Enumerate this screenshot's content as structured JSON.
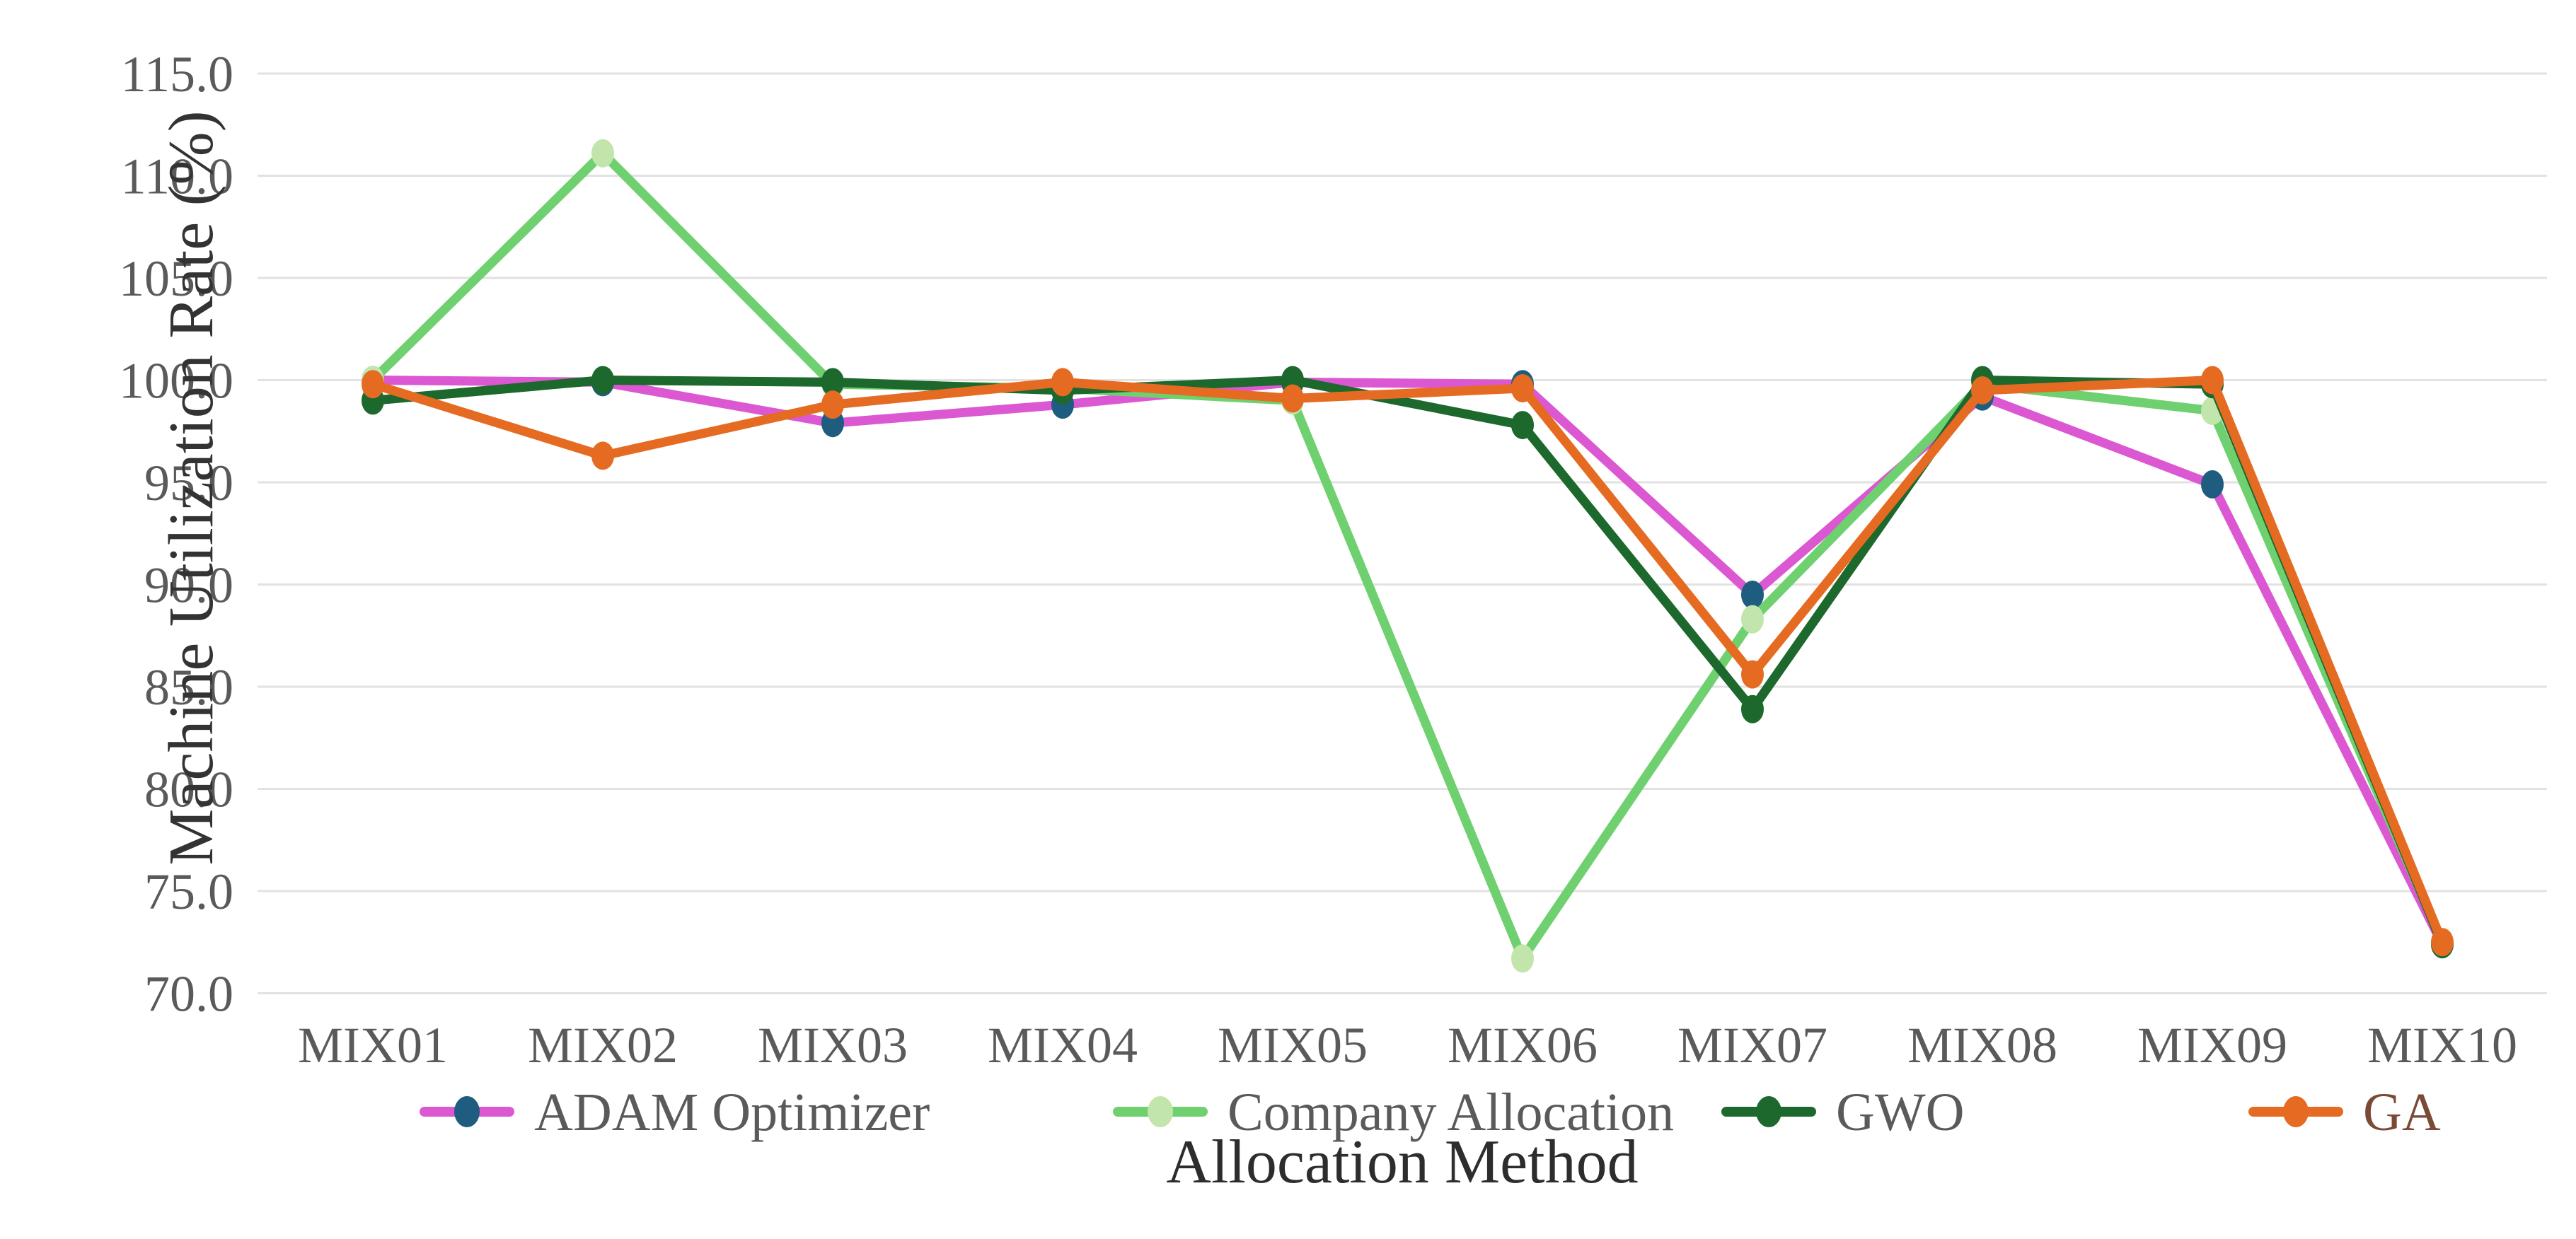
{
  "chart_data": {
    "type": "line",
    "title": "",
    "xlabel": "Allocation Method",
    "ylabel": "Machine Utilization Rate (%)",
    "categories": [
      "MIX01",
      "MIX02",
      "MIX03",
      "MIX04",
      "MIX05",
      "MIX06",
      "MIX07",
      "MIX08",
      "MIX09",
      "MIX10"
    ],
    "y_ticks": [
      "115.0",
      "110.0",
      "105.0",
      "100.0",
      "95.0",
      "90.0",
      "85.0",
      "80.0",
      "75.0",
      "70.0"
    ],
    "ylim": [
      70.0,
      115.0
    ],
    "grid": "horizontal",
    "legend_position": "bottom",
    "series": [
      {
        "name": "ADAM Optimizer",
        "line_color": "#db58d2",
        "marker_color": "#1e5d7f",
        "label_color": "#5a5a5a",
        "values": [
          100.0,
          99.9,
          97.9,
          98.8,
          99.9,
          99.8,
          89.5,
          99.2,
          94.9,
          72.4
        ]
      },
      {
        "name": "Company Allocation",
        "line_color": "#6fd06f",
        "marker_color": "#c2e5ab",
        "label_color": "#5a5a5a",
        "values": [
          100.0,
          111.1,
          99.8,
          99.6,
          99.0,
          71.7,
          88.3,
          99.8,
          98.5,
          72.5
        ]
      },
      {
        "name": "GWO",
        "line_color": "#1c682d",
        "marker_color": "#1c682d",
        "label_color": "#5a5a5a",
        "values": [
          99.0,
          100.0,
          99.9,
          99.5,
          100.0,
          97.8,
          83.9,
          100.0,
          99.8,
          72.4
        ]
      },
      {
        "name": "GA",
        "line_color": "#e66b22",
        "marker_color": "#e66b22",
        "label_color": "#7b4a35",
        "values": [
          99.8,
          96.3,
          98.8,
          99.9,
          99.1,
          99.6,
          85.6,
          99.5,
          100.0,
          72.5
        ]
      }
    ],
    "colors": {
      "gridline": "#e2e2e2",
      "tick_text": "#5a5a5a",
      "axis_title_y": "#333333",
      "axis_title_x": "#2d2d2d"
    }
  }
}
